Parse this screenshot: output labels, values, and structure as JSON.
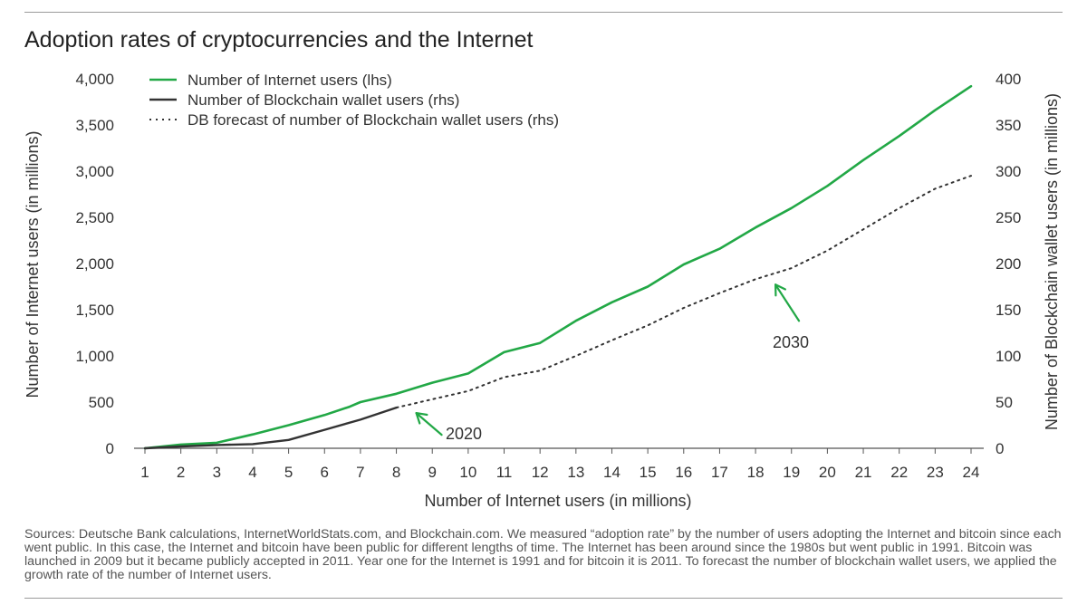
{
  "title": "Adoption rates of cryptocurrencies and the Internet",
  "source_note": "Sources: Deutsche Bank calculations, InternetWorldStats.com, and Blockchain.com. We measured “adoption rate” by the number of users adopting the Internet and bitcoin since each went public. In this case, the Internet and bitcoin have been public for different lengths of time. The Internet has been around since the 1980s but went public in 1991. Bitcoin was launched in 2009 but it became publicly accepted in 2011. Year one for the Internet is 1991 and for bitcoin it is 2011. To forecast the number of blockchain wallet users, we applied the growth rate of the number of Internet users.",
  "colors": {
    "internet": "#22a846",
    "blockchain": "#333333",
    "forecast": "#333333",
    "arrow": "#22a846",
    "axis": "#555555"
  },
  "chart_data": {
    "type": "line",
    "xlabel": "Number of Internet users (in millions)",
    "ylabel_left": "Number of Internet users (in millions)",
    "ylabel_right": "Number of Blockchain wallet users (in millions)",
    "xlim": [
      1,
      24
    ],
    "ylim_left": [
      0,
      4000
    ],
    "ylim_right": [
      0,
      400
    ],
    "x_ticks": [
      "1",
      "2",
      "3",
      "4",
      "5",
      "6",
      "7",
      "8",
      "9",
      "10",
      "11",
      "12",
      "13",
      "14",
      "15",
      "16",
      "17",
      "18",
      "19",
      "20",
      "21",
      "22",
      "23",
      "24"
    ],
    "y_left_ticks": [
      {
        "value": 0,
        "label": "0"
      },
      {
        "value": 500,
        "label": "500"
      },
      {
        "value": 1000,
        "label": "1,000"
      },
      {
        "value": 1500,
        "label": "1,500"
      },
      {
        "value": 2000,
        "label": "2,000"
      },
      {
        "value": 2500,
        "label": "2,500"
      },
      {
        "value": 3000,
        "label": "3,000"
      },
      {
        "value": 3500,
        "label": "3,500"
      },
      {
        "value": 4000,
        "label": "4,000"
      }
    ],
    "y_right_ticks": [
      {
        "value": 0,
        "label": "0"
      },
      {
        "value": 50,
        "label": "50"
      },
      {
        "value": 100,
        "label": "100"
      },
      {
        "value": 150,
        "label": "150"
      },
      {
        "value": 200,
        "label": "200"
      },
      {
        "value": 250,
        "label": "250"
      },
      {
        "value": 300,
        "label": "300"
      },
      {
        "value": 350,
        "label": "350"
      },
      {
        "value": 400,
        "label": "400"
      }
    ],
    "legend_position": "top-left",
    "series": [
      {
        "name": "Number of Internet users (lhs)",
        "axis": "left",
        "style": "solid",
        "color": "#22a846",
        "x": [
          1,
          2,
          3,
          4,
          5,
          6,
          6.7,
          7,
          8,
          9,
          10,
          11,
          12,
          13,
          14,
          15,
          16,
          17,
          18,
          19,
          20,
          21,
          22,
          23,
          24
        ],
        "y": [
          0,
          40,
          60,
          150,
          250,
          360,
          450,
          500,
          590,
          710,
          810,
          1040,
          1140,
          1380,
          1580,
          1750,
          1990,
          2160,
          2390,
          2600,
          2840,
          3120,
          3380,
          3660,
          3920
        ]
      },
      {
        "name": "Number of Blockchain wallet users (rhs)",
        "axis": "right",
        "style": "solid",
        "color": "#333333",
        "x": [
          1,
          2,
          3,
          4,
          5,
          6,
          7,
          8
        ],
        "y": [
          0,
          2,
          3.5,
          4.5,
          9,
          20,
          31,
          44
        ]
      },
      {
        "name": "DB forecast of number of Blockchain wallet users (rhs)",
        "axis": "right",
        "style": "dotted",
        "color": "#333333",
        "x": [
          8,
          9,
          10,
          11,
          12,
          13,
          14,
          15,
          16,
          17,
          18,
          19,
          20,
          21,
          22,
          23,
          24
        ],
        "y": [
          44,
          53,
          62,
          77,
          84,
          100,
          117,
          133,
          152,
          168,
          183,
          195,
          214,
          237,
          260,
          281,
          295
        ]
      }
    ],
    "annotations": [
      {
        "label": "2020",
        "x": 8,
        "axis": "right",
        "y": 44
      },
      {
        "label": "2030",
        "x": 18,
        "axis": "right",
        "y": 183
      }
    ]
  }
}
